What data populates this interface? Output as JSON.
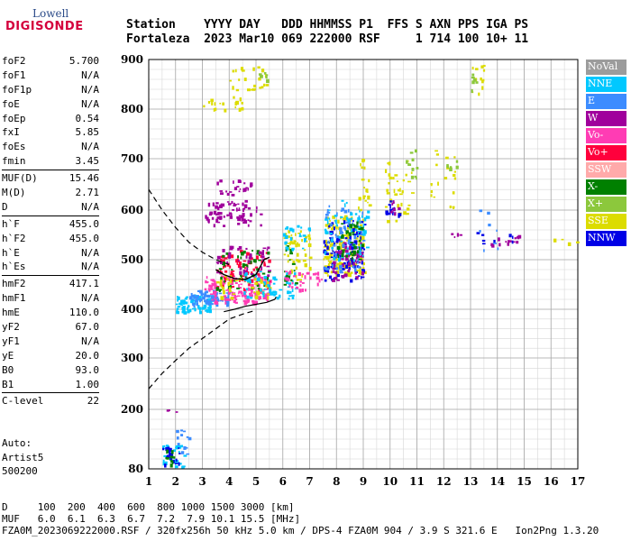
{
  "logo": {
    "line1": "Lowell",
    "line2": "DIGISONDE"
  },
  "header": {
    "line1": "Station    YYYY DAY   DDD HHMMSS P1  FFS S AXN PPS IGA PS",
    "line2": "Fortaleza  2023 Mar10 069 222000 RSF     1 714 100 10+ 11"
  },
  "params": [
    {
      "k": "foF2",
      "v": "5.700"
    },
    {
      "k": "foF1",
      "v": "N/A"
    },
    {
      "k": "foF1p",
      "v": "N/A"
    },
    {
      "k": "foE",
      "v": "N/A"
    },
    {
      "k": "foEp",
      "v": "0.54"
    },
    {
      "k": "fxI",
      "v": "5.85"
    },
    {
      "k": "foEs",
      "v": "N/A"
    },
    {
      "k": "fmin",
      "v": "3.45"
    },
    {
      "sep": true
    },
    {
      "k": "MUF(D)",
      "v": "15.46"
    },
    {
      "k": "M(D)",
      "v": "2.71"
    },
    {
      "k": "D",
      "v": "N/A"
    },
    {
      "sep": true
    },
    {
      "k": "h`F",
      "v": "455.0"
    },
    {
      "k": "h`F2",
      "v": "455.0"
    },
    {
      "k": "h`E",
      "v": "N/A"
    },
    {
      "k": "h`Es",
      "v": "N/A"
    },
    {
      "sep": true
    },
    {
      "k": "hmF2",
      "v": "417.1"
    },
    {
      "k": "hmF1",
      "v": "N/A"
    },
    {
      "k": "hmE",
      "v": "110.0"
    },
    {
      "k": "yF2",
      "v": "67.0"
    },
    {
      "k": "yF1",
      "v": "N/A"
    },
    {
      "k": "yE",
      "v": "20.0"
    },
    {
      "k": "B0",
      "v": "93.0"
    },
    {
      "k": "B1",
      "v": "1.00"
    },
    {
      "sep": true
    },
    {
      "k": "C-level",
      "v": "22"
    }
  ],
  "auto": {
    "line1": "Auto:",
    "line2": "Artist5",
    "line3": "500200"
  },
  "legend": [
    {
      "label": "NoVal",
      "color": "#9c9c9c"
    },
    {
      "label": "NNE",
      "color": "#00c8ff"
    },
    {
      "label": "E",
      "color": "#3c8cff"
    },
    {
      "label": "W",
      "color": "#a0009c"
    },
    {
      "label": "Vo-",
      "color": "#ff3cb4"
    },
    {
      "label": "Vo+",
      "color": "#ff003c"
    },
    {
      "label": "SSW",
      "color": "#ffaaaa"
    },
    {
      "label": "X-",
      "color": "#008000"
    },
    {
      "label": "X+",
      "color": "#8cc83c"
    },
    {
      "label": "SSE",
      "color": "#dcdc00"
    },
    {
      "label": "NNW",
      "color": "#0000e6"
    }
  ],
  "bottom": {
    "line1": "D     100  200  400  600  800 1000 1500 3000 [km]",
    "line2": "MUF   6.0  6.1  6.3  6.7  7.2  7.9 10.1 15.5 [MHz]",
    "line3": "FZA0M_2023069222000.RSF / 320fx256h 50 kHz 5.0 km / DPS-4 FZA0M 904 / 3.9 S 321.6 E   Ion2Png 1.3.20"
  },
  "chart_data": {
    "type": "scatter",
    "x_ticks": [
      1,
      2,
      3,
      4,
      5,
      6,
      7,
      8,
      9,
      10,
      11,
      12,
      13,
      14,
      15,
      16,
      17
    ],
    "y_ticks": [
      80,
      200,
      300,
      400,
      500,
      600,
      700,
      800,
      900
    ],
    "xlim": [
      1,
      17
    ],
    "ylim": [
      80,
      900
    ],
    "grid": true,
    "x_minor_step": 0.5,
    "y_minor_step": 20,
    "clusters": [
      {
        "color": "W",
        "x": [
          3.0,
          5.2
        ],
        "y": [
          570,
          620
        ],
        "n": 70
      },
      {
        "color": "W",
        "x": [
          3.5,
          4.8
        ],
        "y": [
          630,
          660
        ],
        "n": 25
      },
      {
        "color": "SSE",
        "x": [
          3.0,
          4.5
        ],
        "y": [
          800,
          830
        ],
        "n": 18
      },
      {
        "color": "SSE",
        "x": [
          4.0,
          5.5
        ],
        "y": [
          840,
          890
        ],
        "n": 25
      },
      {
        "color": "X+",
        "x": [
          5.0,
          5.5
        ],
        "y": [
          860,
          895
        ],
        "n": 6
      },
      {
        "color": "NNE",
        "x": [
          2.0,
          3.3
        ],
        "y": [
          395,
          430
        ],
        "n": 80
      },
      {
        "color": "E",
        "x": [
          2.5,
          4.0
        ],
        "y": [
          410,
          440
        ],
        "n": 70
      },
      {
        "color": "Vo-",
        "x": [
          3.0,
          5.5
        ],
        "y": [
          415,
          470
        ],
        "n": 150
      },
      {
        "color": "Vo+",
        "x": [
          3.5,
          5.5
        ],
        "y": [
          440,
          520
        ],
        "n": 80
      },
      {
        "color": "X-",
        "x": [
          3.5,
          5.5
        ],
        "y": [
          440,
          520
        ],
        "n": 50
      },
      {
        "color": "SSE",
        "x": [
          3.5,
          5.5
        ],
        "y": [
          420,
          470
        ],
        "n": 40
      },
      {
        "color": "NNE",
        "x": [
          4.5,
          6.5
        ],
        "y": [
          420,
          480
        ],
        "n": 60
      },
      {
        "color": "W",
        "x": [
          3.5,
          5.5
        ],
        "y": [
          470,
          530
        ],
        "n": 40
      },
      {
        "color": "SSE",
        "x": [
          6.0,
          7.0
        ],
        "y": [
          460,
          560
        ],
        "n": 50
      },
      {
        "color": "X-",
        "x": [
          6.0,
          6.5
        ],
        "y": [
          450,
          530
        ],
        "n": 15
      },
      {
        "color": "Vo-",
        "x": [
          6.0,
          7.5
        ],
        "y": [
          440,
          480
        ],
        "n": 30
      },
      {
        "color": "NNE",
        "x": [
          6.0,
          7.0
        ],
        "y": [
          520,
          570
        ],
        "n": 25
      },
      {
        "color": "SSE",
        "x": [
          7.5,
          9.0
        ],
        "y": [
          470,
          590
        ],
        "n": 160
      },
      {
        "color": "NNW",
        "x": [
          7.5,
          9.0
        ],
        "y": [
          460,
          580
        ],
        "n": 110
      },
      {
        "color": "W",
        "x": [
          7.8,
          9.0
        ],
        "y": [
          460,
          540
        ],
        "n": 60
      },
      {
        "color": "E",
        "x": [
          7.5,
          9.0
        ],
        "y": [
          480,
          610
        ],
        "n": 60
      },
      {
        "color": "NNE",
        "x": [
          7.5,
          9.2
        ],
        "y": [
          500,
          620
        ],
        "n": 60
      },
      {
        "color": "X-",
        "x": [
          8.0,
          9.0
        ],
        "y": [
          500,
          580
        ],
        "n": 35
      },
      {
        "color": "SSE",
        "x": [
          8.8,
          9.2
        ],
        "y": [
          600,
          700
        ],
        "n": 20
      },
      {
        "color": "SSE",
        "x": [
          9.8,
          10.8
        ],
        "y": [
          580,
          700
        ],
        "n": 35
      },
      {
        "color": "NNW",
        "x": [
          9.8,
          10.3
        ],
        "y": [
          590,
          620
        ],
        "n": 15
      },
      {
        "color": "W",
        "x": [
          10.0,
          10.3
        ],
        "y": [
          595,
          620
        ],
        "n": 8
      },
      {
        "color": "X+",
        "x": [
          10.5,
          11.0
        ],
        "y": [
          650,
          720
        ],
        "n": 12
      },
      {
        "color": "SSE",
        "x": [
          11.5,
          12.5
        ],
        "y": [
          600,
          720
        ],
        "n": 20
      },
      {
        "color": "X+",
        "x": [
          12.0,
          12.5
        ],
        "y": [
          680,
          700
        ],
        "n": 5
      },
      {
        "color": "SSE",
        "x": [
          13.0,
          13.5
        ],
        "y": [
          830,
          890
        ],
        "n": 12
      },
      {
        "color": "X+",
        "x": [
          13.0,
          13.2
        ],
        "y": [
          840,
          880
        ],
        "n": 6
      },
      {
        "color": "W",
        "x": [
          13.3,
          14.8
        ],
        "y": [
          530,
          550
        ],
        "n": 14
      },
      {
        "color": "NNW",
        "x": [
          13.0,
          14.6
        ],
        "y": [
          530,
          560
        ],
        "n": 8
      },
      {
        "color": "E",
        "x": [
          13.3,
          14.0
        ],
        "y": [
          520,
          610
        ],
        "n": 8
      },
      {
        "color": "W",
        "x": [
          12.2,
          12.8
        ],
        "y": [
          545,
          555
        ],
        "n": 4
      },
      {
        "color": "SSE",
        "x": [
          16.0,
          17.0
        ],
        "y": [
          535,
          545
        ],
        "n": 4
      },
      {
        "color": "NNE",
        "x": [
          1.5,
          2.3
        ],
        "y": [
          85,
          130
        ],
        "n": 30
      },
      {
        "color": "NNW",
        "x": [
          1.5,
          2.2
        ],
        "y": [
          85,
          125
        ],
        "n": 20
      },
      {
        "color": "E",
        "x": [
          2.0,
          2.5
        ],
        "y": [
          110,
          160
        ],
        "n": 12
      },
      {
        "color": "X-",
        "x": [
          1.6,
          2.0
        ],
        "y": [
          90,
          120
        ],
        "n": 10
      },
      {
        "color": "W",
        "x": [
          1.6,
          2.0
        ],
        "y": [
          195,
          200
        ],
        "n": 3
      }
    ],
    "profile_solid": [
      [
        3.8,
        395
      ],
      [
        4.2,
        400
      ],
      [
        4.6,
        406
      ],
      [
        5.0,
        410
      ],
      [
        5.4,
        414
      ],
      [
        5.7,
        420
      ],
      [
        5.75,
        425
      ]
    ],
    "profile_dashed_lower": [
      [
        1,
        240
      ],
      [
        1.5,
        270
      ],
      [
        2.0,
        295
      ],
      [
        2.5,
        320
      ],
      [
        3.0,
        340
      ],
      [
        3.5,
        360
      ],
      [
        4.0,
        380
      ],
      [
        4.5,
        390
      ],
      [
        5.0,
        398
      ]
    ],
    "profile_dashed_upper": [
      [
        1,
        640
      ],
      [
        1.5,
        600
      ],
      [
        2.0,
        565
      ],
      [
        2.5,
        535
      ],
      [
        3.0,
        515
      ],
      [
        3.5,
        500
      ],
      [
        4.0,
        490
      ]
    ],
    "trace_black": [
      [
        3.5,
        480
      ],
      [
        3.8,
        470
      ],
      [
        4.2,
        462
      ],
      [
        4.6,
        460
      ],
      [
        5.0,
        470
      ],
      [
        5.3,
        500
      ],
      [
        5.5,
        505
      ]
    ]
  }
}
